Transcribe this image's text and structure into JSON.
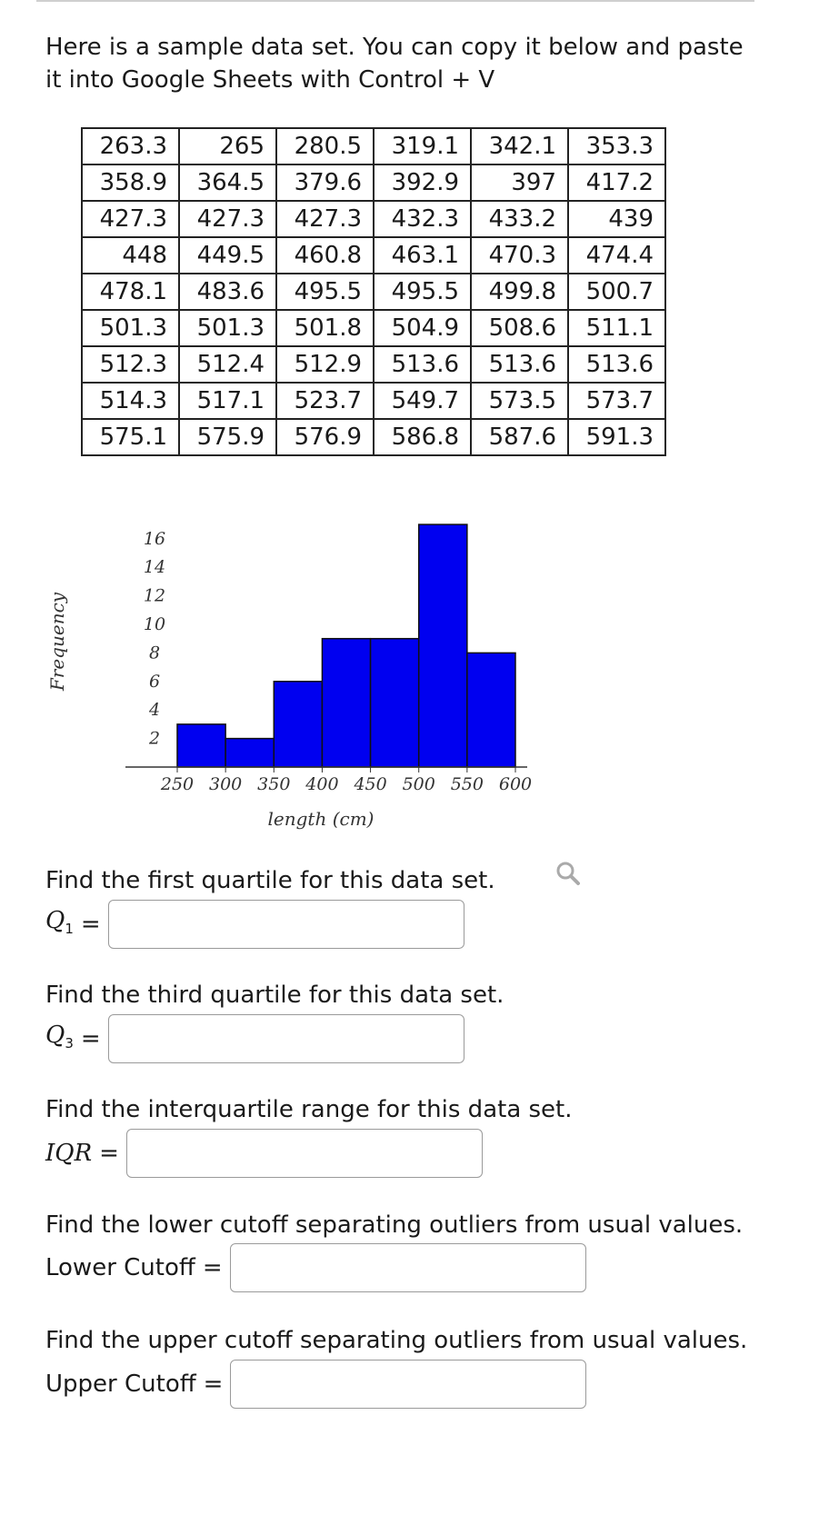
{
  "intro": "Here is a sample data set. You can copy it below and paste it into Google Sheets with Control + V",
  "data_rows": [
    [
      "263.3",
      "265",
      "280.5",
      "319.1",
      "342.1",
      "353.3"
    ],
    [
      "358.9",
      "364.5",
      "379.6",
      "392.9",
      "397",
      "417.2"
    ],
    [
      "427.3",
      "427.3",
      "427.3",
      "432.3",
      "433.2",
      "439"
    ],
    [
      "448",
      "449.5",
      "460.8",
      "463.1",
      "470.3",
      "474.4"
    ],
    [
      "478.1",
      "483.6",
      "495.5",
      "495.5",
      "499.8",
      "500.7"
    ],
    [
      "501.3",
      "501.3",
      "501.8",
      "504.9",
      "508.6",
      "511.1"
    ],
    [
      "512.3",
      "512.4",
      "512.9",
      "513.6",
      "513.6",
      "513.6"
    ],
    [
      "514.3",
      "517.1",
      "523.7",
      "549.7",
      "573.5",
      "573.7"
    ],
    [
      "575.1",
      "575.9",
      "576.9",
      "586.8",
      "587.6",
      "591.3"
    ]
  ],
  "chart_data": {
    "type": "bar",
    "bins": [
      [
        250,
        300
      ],
      [
        300,
        350
      ],
      [
        350,
        400
      ],
      [
        400,
        450
      ],
      [
        450,
        500
      ],
      [
        500,
        550
      ],
      [
        550,
        600
      ]
    ],
    "values": [
      3,
      2,
      6,
      9,
      9,
      17,
      8
    ],
    "yticks": [
      "2",
      "4",
      "6",
      "8",
      "10",
      "12",
      "14",
      "16"
    ],
    "xticks": [
      "250",
      "300",
      "350",
      "400",
      "450",
      "500",
      "550",
      "600"
    ],
    "ylabel": "Frequency",
    "xlabel": "length (cm)",
    "bar_color": "#0000f0",
    "xlim": [
      250,
      600
    ],
    "ylim": [
      0,
      17
    ]
  },
  "icons": {
    "zoom": "magnifier-icon"
  },
  "questions": [
    {
      "text": "Find the first quartile for this data set.",
      "label_sym": "Q",
      "label_sub": "1",
      "value": ""
    },
    {
      "text": "Find the third quartile for this data set.",
      "label_sym": "Q",
      "label_sub": "3",
      "value": ""
    },
    {
      "text": "Find the interquartile range for this data set.",
      "label_sym": "IQR",
      "value": ""
    },
    {
      "text": "Find the lower cutoff separating outliers from usual values.",
      "label_text": "Lower Cutoff",
      "value": ""
    },
    {
      "text": "Find the upper cutoff separating outliers from usual values.",
      "label_text": "Upper Cutoff",
      "value": ""
    }
  ],
  "equals": "="
}
